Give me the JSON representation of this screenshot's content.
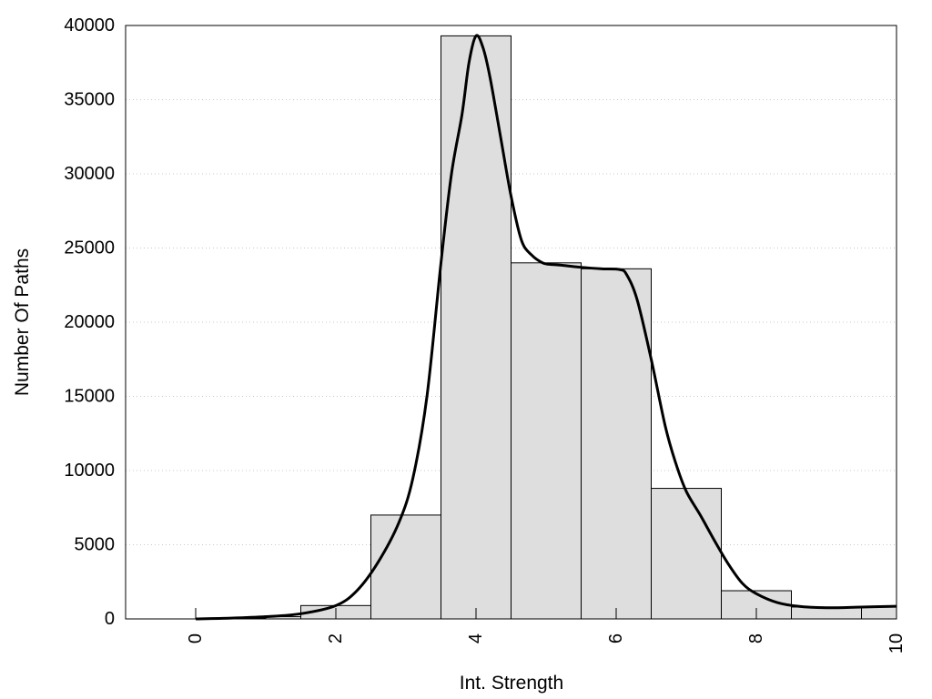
{
  "chart_data": {
    "type": "bar",
    "subtype": "histogram-with-density-curve",
    "xlabel": "Int. Strength",
    "ylabel": "Number Of Paths",
    "xlim": [
      -1,
      10
    ],
    "ylim": [
      0,
      40000
    ],
    "x_ticks": [
      0,
      2,
      4,
      6,
      8,
      10
    ],
    "x_tick_labels": [
      "0",
      "2",
      "4",
      "6",
      "8",
      "10"
    ],
    "x_tick_label_rotation": "vertical",
    "y_ticks": [
      0,
      5000,
      10000,
      15000,
      20000,
      25000,
      30000,
      35000,
      40000
    ],
    "y_tick_labels": [
      "0",
      "5000",
      "10000",
      "15000",
      "20000",
      "25000",
      "30000",
      "35000",
      "40000"
    ],
    "grid": "horizontal dotted",
    "legend": "none",
    "bar_color": "#dedede",
    "bar_edge_color": "#000000",
    "curve_color": "#000000",
    "bins": [
      {
        "x0": 0,
        "x1": 1,
        "value": 50
      },
      {
        "x0": 1,
        "x1": 1.5,
        "value": 150
      },
      {
        "x0": 1.5,
        "x1": 2.5,
        "value": 900
      },
      {
        "x0": 2.5,
        "x1": 3.5,
        "value": 7000
      },
      {
        "x0": 3.5,
        "x1": 4.5,
        "value": 39300
      },
      {
        "x0": 4.5,
        "x1": 5.5,
        "value": 24000
      },
      {
        "x0": 5.5,
        "x1": 6.5,
        "value": 23600
      },
      {
        "x0": 6.5,
        "x1": 7.5,
        "value": 8800
      },
      {
        "x0": 7.5,
        "x1": 8.5,
        "value": 1900
      },
      {
        "x0": 8.5,
        "x1": 9.5,
        "value": 800
      },
      {
        "x0": 9.5,
        "x1": 10,
        "value": 850
      }
    ],
    "density_curve": {
      "x": [
        0,
        0.5,
        1,
        1.5,
        2,
        2.3,
        2.6,
        2.9,
        3.1,
        3.3,
        3.5,
        3.65,
        3.8,
        3.9,
        4.0,
        4.1,
        4.2,
        4.35,
        4.5,
        4.65,
        4.8,
        4.95,
        5.05,
        5.2,
        5.5,
        5.8,
        6.05,
        6.15,
        6.3,
        6.5,
        6.7,
        6.85,
        7.0,
        7.2,
        7.4,
        7.6,
        7.8,
        8.0,
        8.3,
        8.6,
        9.0,
        9.5,
        10
      ],
      "y": [
        0,
        50,
        150,
        350,
        900,
        1900,
        3800,
        6500,
        9500,
        15000,
        24000,
        30000,
        34000,
        37500,
        39300,
        38500,
        36500,
        32500,
        28500,
        25500,
        24500,
        24000,
        23900,
        23850,
        23700,
        23600,
        23550,
        23200,
        21500,
        17500,
        13000,
        10500,
        8600,
        7000,
        5300,
        3700,
        2400,
        1700,
        1100,
        850,
        750,
        800,
        850
      ]
    }
  }
}
